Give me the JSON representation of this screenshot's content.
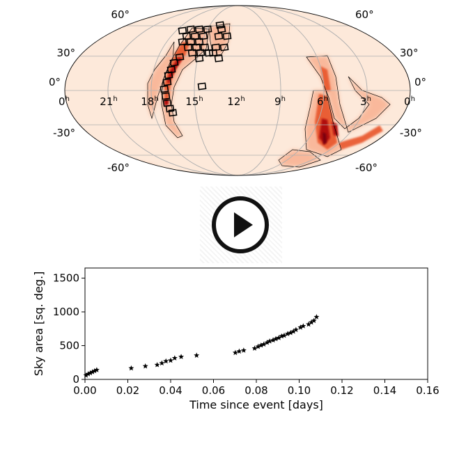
{
  "colors": {
    "sky_base": "#fde9da",
    "prob_light": "#f8b090",
    "prob_mid": "#e8552c",
    "prob_high": "#b01010",
    "prob_peak": "#7a0010",
    "marker": "#000000",
    "grid": "#b0b0b0"
  },
  "skymap": {
    "projection": "mollweide",
    "ra_labels": [
      "0",
      "21",
      "18",
      "15",
      "12",
      "9",
      "6",
      "3",
      "0"
    ],
    "ra_unit": "h",
    "dec_labels_left": [
      "60°",
      "30°",
      "0°",
      "-30°",
      "-60°"
    ],
    "dec_labels_right": [
      "60°",
      "30°",
      "0°",
      "-30°",
      "-60°"
    ]
  },
  "player": {
    "icon": "play-icon"
  },
  "chart_data": {
    "type": "scatter",
    "marker": "star",
    "xlabel": "Time since event [days]",
    "ylabel": "Sky area [sq. deg.]",
    "xlim": [
      0,
      0.16
    ],
    "ylim": [
      0,
      1650
    ],
    "x_ticks": [
      0.0,
      0.02,
      0.04,
      0.06,
      0.08,
      0.1,
      0.12,
      0.14,
      0.16
    ],
    "x_tick_labels": [
      "0.00",
      "0.02",
      "0.04",
      "0.06",
      "0.08",
      "0.10",
      "0.12",
      "0.14",
      "0.16"
    ],
    "y_ticks": [
      0,
      500,
      1000,
      1500
    ],
    "y_tick_labels": [
      "0",
      "500",
      "1000",
      "1500"
    ],
    "grid": false,
    "series": [
      {
        "x": [
          0.0005,
          0.0015,
          0.0025,
          0.0035,
          0.0045,
          0.0055,
          0.0216,
          0.0282,
          0.0337,
          0.0359,
          0.0378,
          0.04,
          0.0419,
          0.0449,
          0.0521,
          0.0702,
          0.072,
          0.0741,
          0.0792,
          0.0808,
          0.0822,
          0.0835,
          0.085,
          0.0862,
          0.0878,
          0.0891,
          0.0905,
          0.0918,
          0.093,
          0.0946,
          0.096,
          0.0973,
          0.0985,
          0.1006,
          0.1019,
          0.1044,
          0.1057,
          0.1069,
          0.1081
        ],
        "y": [
          60,
          80,
          95,
          110,
          125,
          140,
          165,
          195,
          215,
          240,
          270,
          280,
          315,
          335,
          355,
          395,
          415,
          430,
          460,
          485,
          505,
          520,
          545,
          565,
          580,
          600,
          615,
          640,
          650,
          675,
          690,
          710,
          735,
          770,
          790,
          815,
          845,
          870,
          925
        ]
      }
    ]
  }
}
